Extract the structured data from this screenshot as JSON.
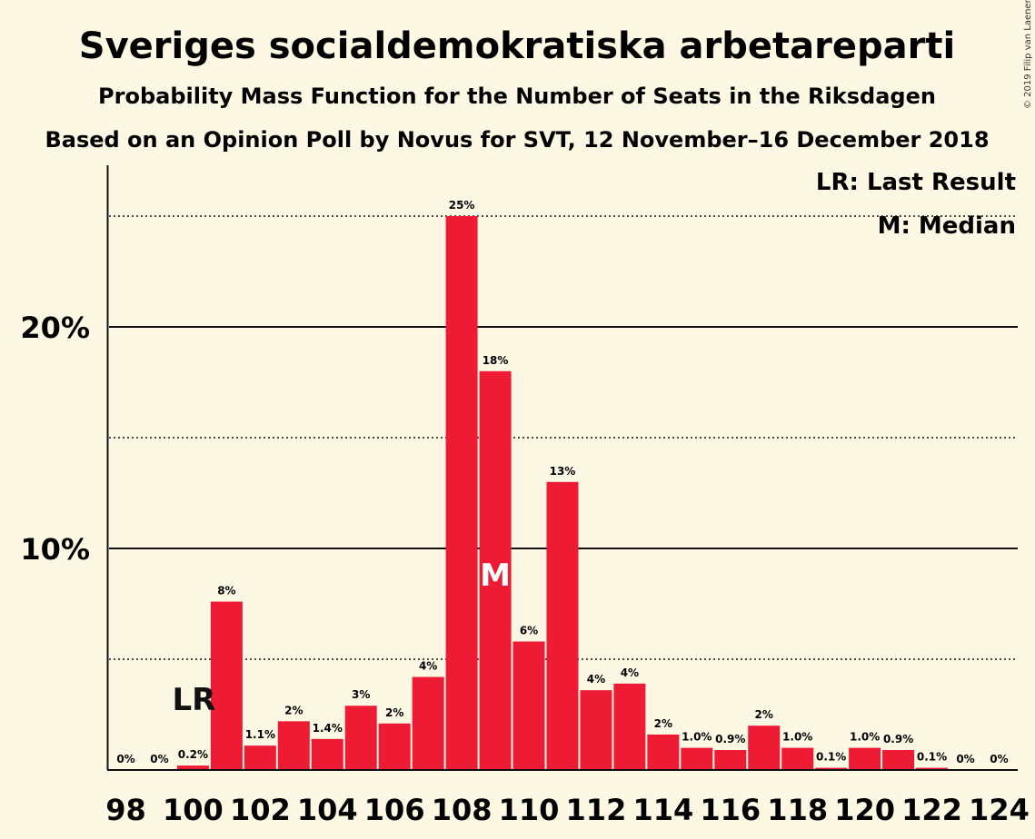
{
  "title": "Sveriges socialdemokratiska arbetareparti",
  "subtitle": "Probability Mass Function for the Number of Seats in the Riksdagen",
  "subtitle2": "Based on an Opinion Poll by Novus for SVT, 12 November–16 December 2018",
  "copyright": "© 2019 Filip van Laenen",
  "legend": {
    "lr": "LR: Last Result",
    "m": "M: Median"
  },
  "colors": {
    "bar": "#ed1b34",
    "background": "#fdf8e4",
    "text": "#111111"
  },
  "chart_data": {
    "type": "bar",
    "x": [
      98,
      99,
      100,
      101,
      102,
      103,
      104,
      105,
      106,
      107,
      108,
      109,
      110,
      111,
      112,
      113,
      114,
      115,
      116,
      117,
      118,
      119,
      120,
      121,
      122,
      123,
      124
    ],
    "values": [
      0,
      0,
      0.2,
      7.6,
      1.1,
      2.2,
      1.4,
      2.9,
      2.1,
      4.2,
      25.0,
      18.0,
      5.8,
      13.0,
      3.6,
      3.9,
      1.6,
      1.0,
      0.9,
      2.0,
      1.0,
      0.1,
      1.0,
      0.9,
      0.1,
      0,
      0
    ],
    "labels": [
      "0%",
      "0%",
      "0.2%",
      "8%",
      "1.1%",
      "2%",
      "1.4%",
      "3%",
      "2%",
      "4%",
      "25%",
      "18%",
      "6%",
      "13%",
      "4%",
      "4%",
      "2%",
      "1.0%",
      "0.9%",
      "2%",
      "1.0%",
      "0.1%",
      "1.0%",
      "0.9%",
      "0.1%",
      "0%",
      "0%"
    ],
    "x_tick_labels": [
      "98",
      "100",
      "102",
      "104",
      "106",
      "108",
      "110",
      "112",
      "114",
      "116",
      "118",
      "120",
      "122",
      "124"
    ],
    "y_tick_labels": [
      "10%",
      "20%"
    ],
    "ylim": [
      0,
      27.2
    ],
    "gridlines_solid": [
      10,
      20
    ],
    "gridlines_dotted": [
      5,
      15,
      25
    ],
    "last_result": {
      "seat": 100,
      "label": "LR"
    },
    "median": {
      "seat": 109,
      "label": "M"
    }
  }
}
